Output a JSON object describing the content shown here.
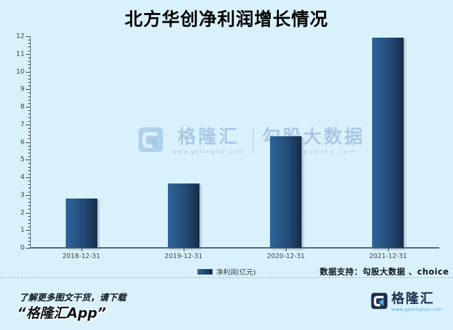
{
  "page": {
    "background": "#d9f1fb"
  },
  "title": "北方华创净利润增长情况",
  "chart_data": {
    "type": "bar",
    "title": "北方华创净利润增长情况",
    "categories": [
      "2018-12-31",
      "2019-12-31",
      "2020-12-31",
      "2021-12-31"
    ],
    "series": [
      {
        "name": "净利润(亿元)",
        "values": [
          2.8,
          3.65,
          6.32,
          11.93
        ]
      }
    ],
    "xlabel": "",
    "ylabel": "",
    "ylim": [
      0,
      12
    ],
    "yticks": [
      0,
      1,
      2,
      3,
      4,
      5,
      6,
      7,
      8,
      9,
      10,
      11,
      12
    ],
    "minor_ticks_per_unit": 4,
    "grid": false,
    "legend": {
      "position": "bottom-center",
      "entries": [
        "净利润(亿元)"
      ]
    },
    "bar_gradient": [
      "#2f6498",
      "#152c47"
    ]
  },
  "watermark": {
    "brand": "格隆汇",
    "brand_url": "www.gelonghui.com",
    "partner": "勾股大数据",
    "partner_url": "www.gogudata.com"
  },
  "footer": {
    "data_support": "数据支持：勾股大数据 、choice",
    "promo_line1": "了解更多图文干货，请下载",
    "promo_line2": "“格隆汇App”",
    "brand": "格隆汇",
    "brand_url": "www.gelonghui.com"
  },
  "colors": {
    "background": "#d9f1fb",
    "bar_gradient_start": "#2f6498",
    "bar_gradient_end": "#152c47",
    "axis": "#52606b",
    "navy": "#1d2e4e",
    "link_blue": "#4d9fd6"
  }
}
